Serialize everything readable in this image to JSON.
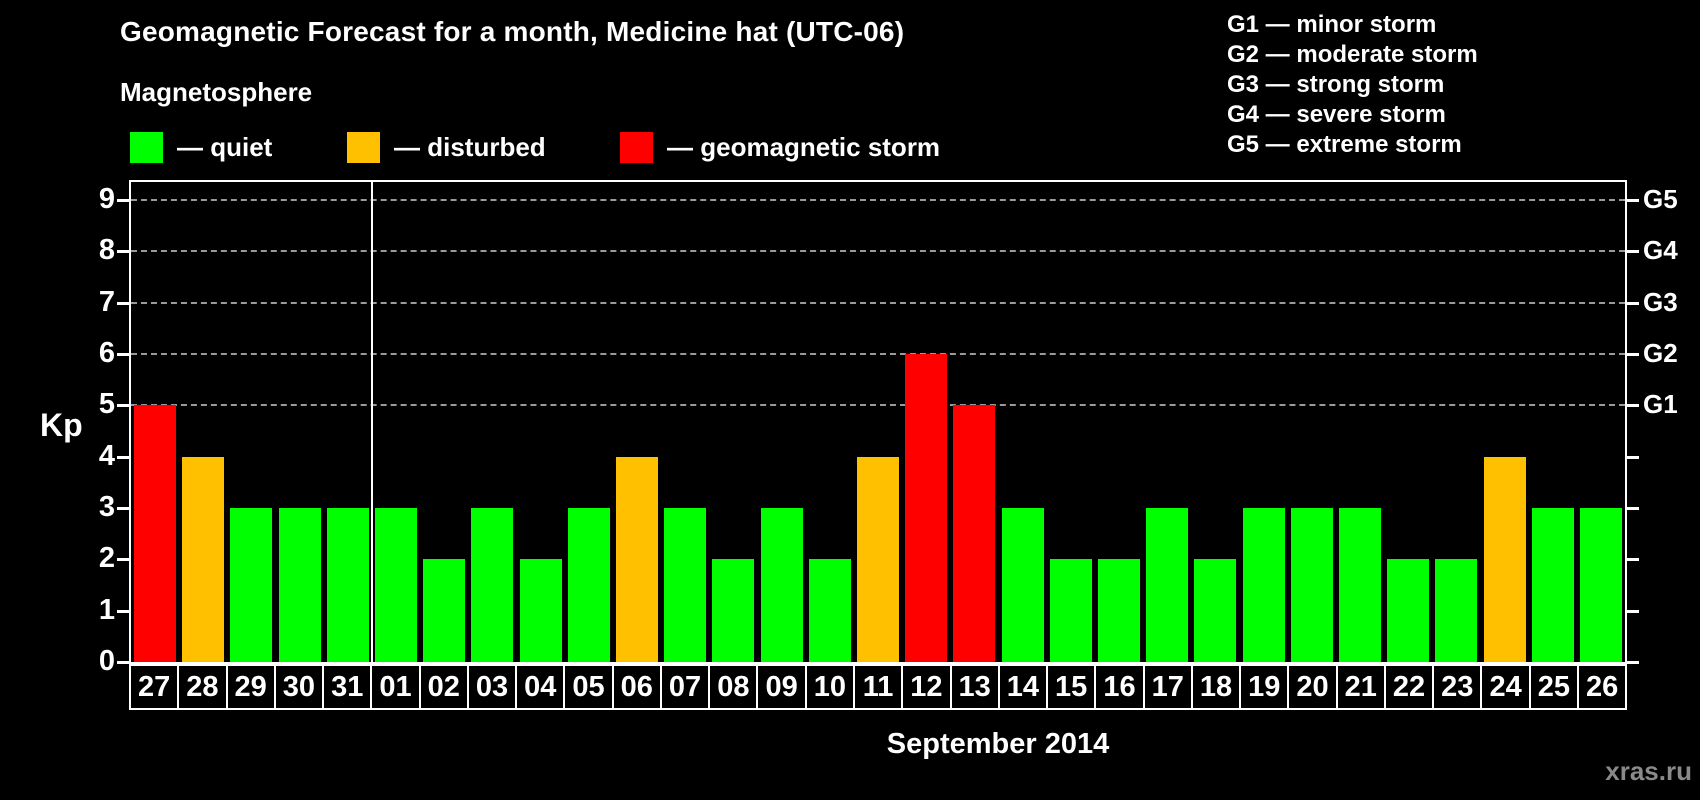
{
  "title": "Geomagnetic Forecast for a month, Medicine hat (UTC-06)",
  "legend": {
    "heading": "Magnetosphere",
    "items": [
      {
        "name": "quiet",
        "label": "— quiet",
        "color": "#00ff00"
      },
      {
        "name": "disturbed",
        "label": "— disturbed",
        "color": "#ffc000"
      },
      {
        "name": "geomagnetic-storm",
        "label": "— geomagnetic storm",
        "color": "#ff0000"
      }
    ]
  },
  "storm_scale_legend": [
    "G1 — minor storm",
    "G2 — moderate storm",
    "G3 — strong storm",
    "G4 — severe storm",
    "G5 — extreme storm"
  ],
  "watermark": "xras.ru",
  "chart_data": {
    "type": "bar",
    "title": "Geomagnetic Forecast for a month, Medicine hat (UTC-06)",
    "xlabel": "September 2014",
    "ylabel": "Kp",
    "ylim": [
      0,
      9.35
    ],
    "yticks": [
      0,
      1,
      2,
      3,
      4,
      5,
      6,
      7,
      8,
      9
    ],
    "gridlines_at_kp": [
      5,
      6,
      7,
      8,
      9
    ],
    "grid": "dashed-horizontal",
    "legend_position": "top",
    "right_axis_labels": [
      {
        "label": "G1",
        "kp": 5
      },
      {
        "label": "G2",
        "kp": 6
      },
      {
        "label": "G3",
        "kp": 7
      },
      {
        "label": "G4",
        "kp": 8
      },
      {
        "label": "G5",
        "kp": 9
      }
    ],
    "month_separator_after_index": 4,
    "categories": [
      "27",
      "28",
      "29",
      "30",
      "31",
      "01",
      "02",
      "03",
      "04",
      "05",
      "06",
      "07",
      "08",
      "09",
      "10",
      "11",
      "12",
      "13",
      "14",
      "15",
      "16",
      "17",
      "18",
      "19",
      "20",
      "21",
      "22",
      "23",
      "24",
      "25",
      "26"
    ],
    "values": [
      5,
      4,
      3,
      3,
      3,
      3,
      2,
      3,
      2,
      3,
      4,
      3,
      2,
      3,
      2,
      4,
      6,
      5,
      3,
      2,
      2,
      3,
      2,
      3,
      3,
      3,
      2,
      2,
      4,
      3,
      3
    ],
    "states": [
      "storm",
      "disturbed",
      "quiet",
      "quiet",
      "quiet",
      "quiet",
      "quiet",
      "quiet",
      "quiet",
      "quiet",
      "disturbed",
      "quiet",
      "quiet",
      "quiet",
      "quiet",
      "disturbed",
      "storm",
      "storm",
      "quiet",
      "quiet",
      "quiet",
      "quiet",
      "quiet",
      "quiet",
      "quiet",
      "quiet",
      "quiet",
      "quiet",
      "disturbed",
      "quiet",
      "quiet"
    ],
    "state_colors": {
      "quiet": "#00ff00",
      "disturbed": "#ffc000",
      "storm": "#ff0000"
    }
  }
}
